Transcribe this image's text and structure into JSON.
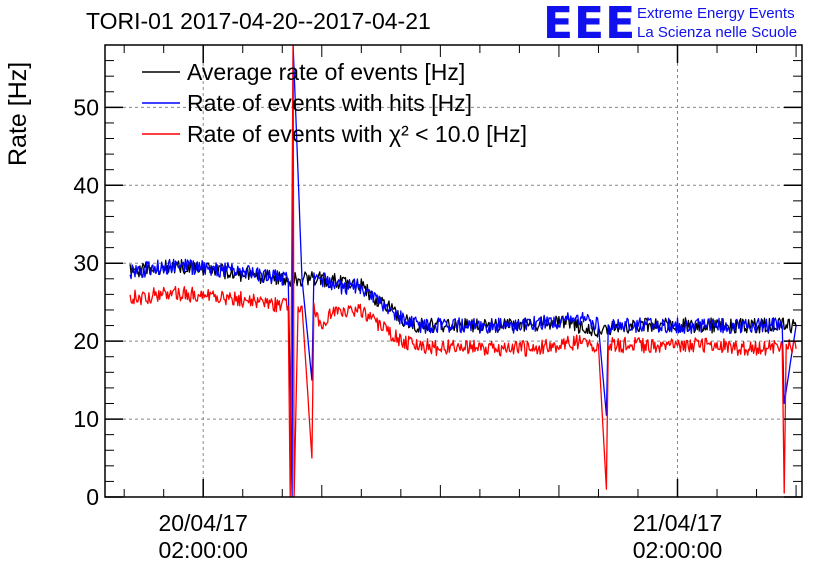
{
  "header": {
    "title": "TORI-01 2017-04-20--2017-04-21",
    "logo_mark": "EEE",
    "logo_line1": "Extreme Energy Events",
    "logo_line2": "La Scienza nelle Scuole"
  },
  "colors": {
    "average": "#000000",
    "hits": "#0000ff",
    "chi2": "#ff0000",
    "logo": "#1111ee",
    "grid": "#888888"
  },
  "chart_data": {
    "type": "line",
    "title": "TORI-01 2017-04-20--2017-04-21",
    "ylabel": "Rate [Hz]",
    "xlabel": "",
    "ylim": [
      0,
      58
    ],
    "y_ticks": [
      0,
      10,
      20,
      30,
      40,
      50
    ],
    "x_range_hours": [
      -4.97,
      30.3
    ],
    "x_ticks": [
      {
        "hours": 0,
        "date": "20/04/17",
        "time": "02:00:00"
      },
      {
        "hours": 24,
        "date": "21/04/17",
        "time": "02:00:00"
      }
    ],
    "grid": true,
    "legend_position": "top-left",
    "series": [
      {
        "name": "Average rate of events [Hz]",
        "color": "#000000",
        "x": [
          -3.7,
          -2,
          0,
          2,
          4.5,
          6,
          8,
          10.5,
          12,
          14,
          16,
          18,
          20,
          22,
          24,
          26,
          28,
          30
        ],
        "y": [
          29,
          29.5,
          29.5,
          28.5,
          28,
          28,
          27,
          22,
          22,
          22,
          22,
          22.5,
          21.5,
          22,
          22,
          22,
          22,
          22
        ]
      },
      {
        "name": "Rate of events with hits [Hz]",
        "color": "#0000ff",
        "x": [
          -3.7,
          -2,
          0,
          1.5,
          3,
          4.3,
          4.5,
          4.55,
          5,
          5.5,
          5.6,
          6,
          7,
          8,
          9,
          10,
          11,
          12,
          14,
          16,
          18,
          19,
          20,
          20.4,
          20.5,
          22,
          24,
          26,
          27,
          28,
          29.3,
          29.4,
          30
        ],
        "y": [
          29,
          29.5,
          29.5,
          29,
          28.5,
          28,
          0,
          58,
          28,
          15,
          28,
          28,
          27,
          27,
          25,
          23,
          22,
          22,
          22,
          22,
          22.5,
          23,
          22,
          10.5,
          22,
          22,
          22,
          22,
          22,
          22,
          22,
          12,
          22
        ]
      },
      {
        "name": "Rate of events with χ² < 10.0 [Hz]",
        "color": "#ff0000",
        "x": [
          -3.7,
          -2,
          -1,
          0,
          1.5,
          3,
          4.3,
          4.4,
          4.55,
          4.6,
          4.8,
          5,
          5.5,
          5.6,
          5.9,
          6.5,
          7,
          8,
          9,
          10,
          11,
          12,
          13,
          14,
          16,
          18,
          19,
          20,
          20.4,
          20.5,
          20.6,
          22,
          24,
          26,
          27,
          28,
          29.3,
          29.4,
          29.5,
          30
        ],
        "y": [
          25.5,
          26,
          26,
          26,
          25.5,
          25,
          24.5,
          0,
          58,
          0,
          24.5,
          24.5,
          5,
          24.5,
          22,
          24,
          24,
          24,
          22,
          20,
          19.5,
          19,
          19.5,
          19,
          19,
          19.5,
          20,
          19.5,
          1,
          19.5,
          19.5,
          19.5,
          19.5,
          19.5,
          19,
          19,
          19.5,
          0.5,
          19.5,
          19
        ]
      }
    ]
  }
}
